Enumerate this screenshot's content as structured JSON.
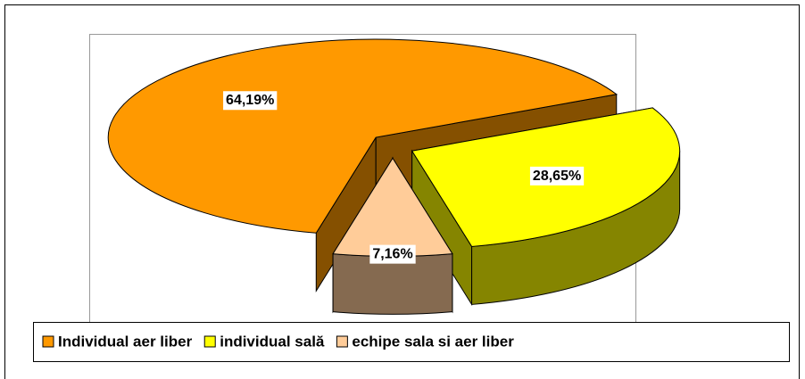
{
  "chart_data": {
    "type": "pie3d",
    "categories": [
      "Individual aer liber",
      "individual sală",
      "echipe sala si aer liber"
    ],
    "values": [
      64.19,
      28.65,
      7.16
    ],
    "value_labels": [
      "64,19%",
      "28,65%",
      "7,16%"
    ],
    "colors": [
      "#FF9900",
      "#FFFF00",
      "#FFCC99"
    ],
    "legend": "bottom"
  }
}
